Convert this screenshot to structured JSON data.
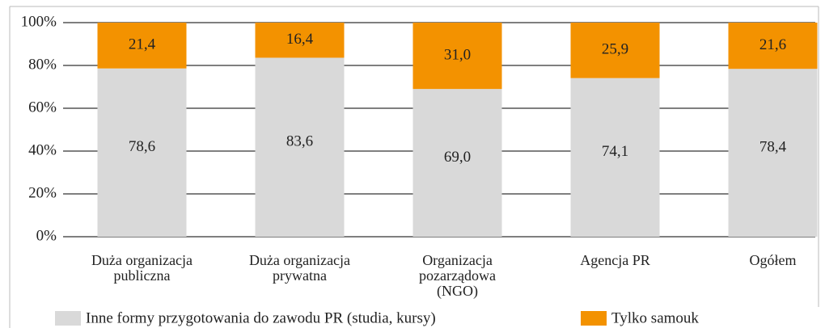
{
  "chart_data": {
    "type": "stacked_bar",
    "categories": [
      "Duża organizacja\npubliczna",
      "Duża organizacja\nprywatna",
      "Organizacja\npozarządowa\n(NGO)",
      "Agencja PR",
      "Ogółem"
    ],
    "series": [
      {
        "name": "Inne formy przygotowania do zawodu PR (studia, kursy)",
        "color": "#d9d9d9",
        "values": [
          78.6,
          83.6,
          69.0,
          74.1,
          78.4
        ],
        "value_labels": [
          "78,6",
          "83,6",
          "69,0",
          "74,1",
          "78,4"
        ]
      },
      {
        "name": "Tylko samouk",
        "color": "#f39200",
        "values": [
          21.4,
          16.4,
          31.0,
          25.9,
          21.6
        ],
        "value_labels": [
          "21,4",
          "16,4",
          "31,0",
          "25,9",
          "21,6"
        ]
      }
    ],
    "ylim": [
      0,
      100
    ],
    "yticks": [
      {
        "value": 0,
        "label": "0%"
      },
      {
        "value": 20,
        "label": "20%"
      },
      {
        "value": 40,
        "label": "40%"
      },
      {
        "value": 60,
        "label": "60%"
      },
      {
        "value": 80,
        "label": "80%"
      },
      {
        "value": 100,
        "label": "100%"
      }
    ],
    "grid": true
  }
}
